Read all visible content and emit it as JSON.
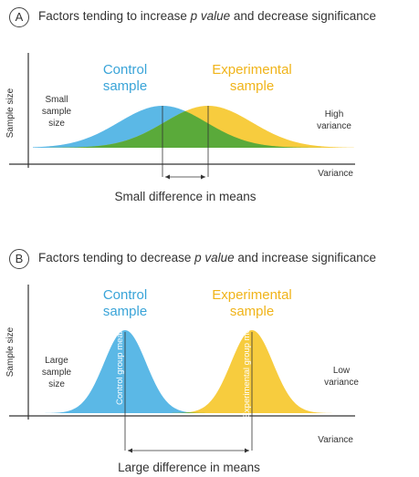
{
  "panel_a": {
    "letter": "A",
    "title_pre": "Factors tending to increase ",
    "title_italic": "p value",
    "title_post": " and decrease significance",
    "y_axis_label": "Sample size",
    "x_axis_label": "Variance",
    "control_label_1": "Control",
    "control_label_2": "sample",
    "experimental_label_1": "Experimental",
    "experimental_label_2": "sample",
    "left_note": [
      "Small",
      "sample",
      "size"
    ],
    "right_note": [
      "High",
      "variance"
    ],
    "bottom_caption": "Small difference in means"
  },
  "panel_b": {
    "letter": "B",
    "title_pre": "Factors tending to decrease ",
    "title_italic": "p value",
    "title_post": " and increase significance",
    "y_axis_label": "Sample size",
    "x_axis_label": "Variance",
    "control_label_1": "Control",
    "control_label_2": "sample",
    "experimental_label_1": "Experimental",
    "experimental_label_2": "sample",
    "control_mean_label": "Control group mean",
    "experimental_mean_label": "Experimental group mean",
    "left_note": [
      "Large",
      "sample",
      "size"
    ],
    "right_note": [
      "Low",
      "variance"
    ],
    "bottom_caption": "Large difference in means"
  },
  "colors": {
    "control": "#5bb8e6",
    "experimental": "#f7cc3e",
    "overlap": "#5aaa3a",
    "control_text": "#3aa4d8",
    "experimental_text": "#f0b41a",
    "axis": "#333333"
  }
}
